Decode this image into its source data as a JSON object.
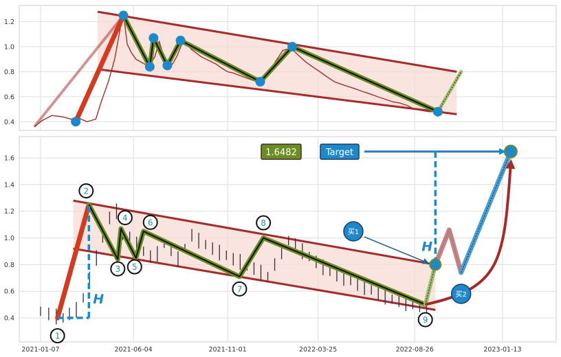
{
  "colors": {
    "price_line": "#a32d2d",
    "candle": "#2e2e45",
    "channel_line": "#a52a2a",
    "channel_fill": "#f7d9d2",
    "wave_outer": "#6b8e23",
    "wave_inner": "#111111",
    "impulse": "#d23b1f",
    "marker": "#1e88c8",
    "label_ring": "#111111",
    "label_text": "#1e88c8",
    "h_text": "#1e88c8",
    "arrow_curve": "#a52a2a",
    "grid": "#dddddd"
  },
  "chart_data": [
    {
      "panel": "top",
      "type": "line",
      "grid": true,
      "ylim": [
        0.33,
        1.33
      ],
      "y_ticks": [
        0.4,
        0.6,
        0.8,
        1.0,
        1.2
      ],
      "series": [
        {
          "x": [
            "2020-12-28",
            "2021-01-10",
            "2021-01-25",
            "2021-02-10",
            "2021-02-25",
            "2021-03-08",
            "2021-03-22",
            "2021-04-05",
            "2021-04-15",
            "2021-04-25",
            "2021-05-05",
            "2021-05-14",
            "2021-05-20",
            "2021-05-25",
            "2021-06-01",
            "2021-06-08",
            "2021-06-15",
            "2021-06-22",
            "2021-06-30",
            "2021-07-08",
            "2021-07-15",
            "2021-07-22",
            "2021-07-29",
            "2021-08-05",
            "2021-08-12",
            "2021-08-20",
            "2021-08-27",
            "2021-09-04",
            "2021-09-12",
            "2021-09-20",
            "2021-09-28",
            "2021-10-06",
            "2021-10-14",
            "2021-10-22",
            "2021-11-01",
            "2021-11-10",
            "2021-11-20",
            "2021-12-01",
            "2021-12-12",
            "2021-12-24",
            "2022-01-05",
            "2022-01-16",
            "2022-01-28",
            "2022-02-10",
            "2022-02-22",
            "2022-03-05",
            "2022-03-16",
            "2022-03-28",
            "2022-04-08",
            "2022-04-20",
            "2022-05-01",
            "2022-05-13",
            "2022-05-25",
            "2022-06-05",
            "2022-06-17",
            "2022-06-28",
            "2022-07-10",
            "2022-07-21",
            "2022-08-02",
            "2022-08-14",
            "2022-08-26",
            "2022-09-06",
            "2022-09-18",
            "2022-09-30",
            "2022-10-10"
          ],
          "values": [
            0.36,
            0.41,
            0.45,
            0.44,
            0.42,
            0.43,
            0.4,
            0.42,
            0.58,
            0.72,
            0.9,
            1.15,
            1.23,
            1.02,
            0.95,
            0.9,
            0.88,
            0.86,
            0.85,
            0.92,
            1.04,
            0.93,
            0.88,
            0.86,
            0.92,
            1.02,
            1.03,
            0.98,
            0.95,
            0.92,
            0.9,
            0.88,
            0.86,
            0.83,
            0.8,
            0.79,
            0.77,
            0.75,
            0.73,
            0.72,
            0.79,
            0.88,
            0.97,
            0.99,
            0.93,
            0.88,
            0.84,
            0.8,
            0.76,
            0.72,
            0.7,
            0.68,
            0.66,
            0.64,
            0.62,
            0.6,
            0.58,
            0.56,
            0.55,
            0.53,
            0.5,
            0.49,
            0.48,
            0.48,
            0.48
          ]
        }
      ],
      "turning_points": {
        "x": [
          "2021-03-04",
          "2021-05-19",
          "2021-06-30",
          "2021-07-06",
          "2021-07-28",
          "2021-08-18",
          "2021-12-23",
          "2022-02-12",
          "2022-10-02"
        ],
        "values": [
          0.4,
          1.25,
          0.84,
          1.07,
          0.85,
          1.05,
          0.72,
          1.0,
          0.48
        ]
      },
      "projection": {
        "x": [
          "2022-10-02",
          "2022-11-08"
        ],
        "values": [
          0.48,
          0.8
        ]
      },
      "channel": {
        "upper": {
          "x": [
            "2021-04-08",
            "2022-11-01"
          ],
          "values": [
            1.28,
            0.8
          ]
        },
        "lower": {
          "x": [
            "2021-04-08",
            "2022-11-01"
          ],
          "values": [
            0.82,
            0.46
          ]
        }
      }
    },
    {
      "panel": "bottom",
      "type": "line",
      "grid": true,
      "ylim": [
        0.22,
        1.76
      ],
      "y_ticks": [
        0.4,
        0.6,
        0.8,
        1.0,
        1.2,
        1.4,
        1.6
      ],
      "x_tick_labels": [
        "2021-01-07",
        "2021-06-04",
        "2021-11-01",
        "2022-03-25",
        "2022-08-26",
        "2023-01-13"
      ],
      "series": [
        {
          "x": [
            "2021-01-07",
            "2021-01-20",
            "2021-02-01",
            "2021-02-12",
            "2021-02-22",
            "2021-03-05",
            "2021-03-16",
            "2021-03-26",
            "2021-04-06",
            "2021-04-16",
            "2021-04-27",
            "2021-05-08",
            "2021-05-18",
            "2021-05-29",
            "2021-06-09",
            "2021-06-20",
            "2021-07-01",
            "2021-07-12",
            "2021-07-23",
            "2021-08-03",
            "2021-08-14",
            "2021-08-25",
            "2021-09-05",
            "2021-09-16",
            "2021-09-27",
            "2021-10-08",
            "2021-10-19",
            "2021-10-30",
            "2021-11-10",
            "2021-11-21",
            "2021-12-02",
            "2021-12-13",
            "2021-12-24",
            "2022-01-04",
            "2022-01-15",
            "2022-01-26",
            "2022-02-06",
            "2022-02-17",
            "2022-02-28",
            "2022-03-11",
            "2022-03-22",
            "2022-04-02",
            "2022-04-13",
            "2022-04-24",
            "2022-05-05",
            "2022-05-16",
            "2022-05-27",
            "2022-06-07",
            "2022-06-18",
            "2022-06-29",
            "2022-07-10",
            "2022-07-21",
            "2022-08-01",
            "2022-08-12",
            "2022-08-23",
            "2022-09-03",
            "2022-09-14"
          ],
          "values": [
            0.45,
            0.43,
            0.41,
            0.4,
            0.43,
            0.46,
            0.55,
            0.7,
            0.85,
            1.0,
            1.15,
            1.2,
            1.02,
            1.0,
            0.95,
            0.9,
            0.86,
            0.88,
            0.96,
            0.91,
            0.84,
            0.92,
            1.02,
            0.98,
            0.95,
            0.92,
            0.89,
            0.87,
            0.84,
            0.82,
            0.79,
            0.77,
            0.74,
            0.71,
            0.8,
            0.9,
            0.98,
            0.95,
            0.9,
            0.86,
            0.82,
            0.78,
            0.75,
            0.72,
            0.7,
            0.68,
            0.65,
            0.63,
            0.61,
            0.58,
            0.56,
            0.54,
            0.53,
            0.51,
            0.5,
            0.49,
            0.5
          ]
        }
      ],
      "turning_points": {
        "labels": [
          "1",
          "2",
          "3",
          "4",
          "5",
          "6",
          "7",
          "8",
          "9"
        ],
        "x": [
          "2021-02-03",
          "2021-03-25",
          "2021-05-10",
          "2021-05-15",
          "2021-06-08",
          "2021-06-20",
          "2021-11-20",
          "2021-12-28",
          "2022-09-12"
        ],
        "values": [
          0.4,
          1.25,
          0.84,
          1.07,
          0.85,
          1.05,
          0.71,
          1.0,
          0.5
        ]
      },
      "projection": {
        "x": [
          "2022-09-12",
          "2022-09-28",
          "2023-01-26"
        ],
        "values": [
          0.5,
          0.8,
          1.6482
        ]
      },
      "target_value": 1.6482,
      "channel": {
        "upper": {
          "x": [
            "2021-02-28",
            "2022-09-28"
          ],
          "values": [
            1.28,
            0.8
          ]
        },
        "lower": {
          "x": [
            "2021-02-28",
            "2022-09-28"
          ],
          "values": [
            0.92,
            0.46
          ]
        }
      }
    }
  ],
  "annotations": {
    "target_value": "1.6482",
    "target_label": "Target",
    "h_label": "H",
    "buy1_label": "买1",
    "buy2_label": "买2"
  }
}
